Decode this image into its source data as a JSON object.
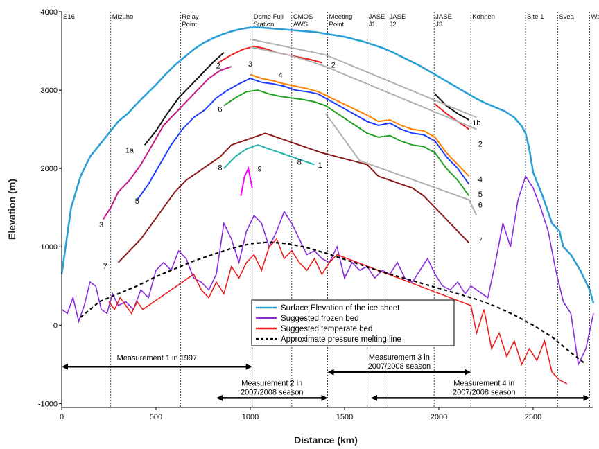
{
  "chart_data": {
    "type": "line",
    "xlabel": "Distance (km)",
    "ylabel": "Elevation (m)",
    "xlim": [
      0,
      2820
    ],
    "ylim": [
      -1050,
      4000
    ],
    "x_ticks": [
      0,
      500,
      1000,
      1500,
      2000,
      2500
    ],
    "y_ticks": [
      -1000,
      0,
      1000,
      2000,
      3000,
      4000
    ],
    "grid": false,
    "legend_position": "bottom-center",
    "colors": {
      "surface": "#2a9fd6",
      "frozen": "#8a2be2",
      "temperate": "#ee1c1c",
      "melting": "#000000",
      "layer_1": "#111111",
      "layer_2": "#ee1c1c",
      "layer_3": "#c71585",
      "layer_4": "#ff7f00",
      "layer_5": "#1e3cff",
      "layer_6": "#22a022",
      "layer_7": "#8b1a1a",
      "layer_8": "#20b2aa",
      "layer_9": "#ff00ff",
      "layer_gray": "#b0b0b0"
    },
    "stations": [
      {
        "km": 0,
        "label": [
          "S16"
        ]
      },
      {
        "km": 260,
        "label": [
          "Mizuho"
        ]
      },
      {
        "km": 630,
        "label": [
          "Relay",
          "Point"
        ]
      },
      {
        "km": 1010,
        "label": [
          "Dome Fuji",
          "Station"
        ]
      },
      {
        "km": 1220,
        "label": [
          "CMOS",
          "AWS"
        ]
      },
      {
        "km": 1410,
        "label": [
          "Meeting",
          "Point"
        ]
      },
      {
        "km": 1620,
        "label": [
          "JASE",
          "J1"
        ]
      },
      {
        "km": 1730,
        "label": [
          "JASE",
          "J2"
        ]
      },
      {
        "km": 1975,
        "label": [
          "JASE",
          "J3"
        ]
      },
      {
        "km": 2170,
        "label": [
          "Kohnen"
        ]
      },
      {
        "km": 2460,
        "label": [
          "Site 1"
        ]
      },
      {
        "km": 2630,
        "label": [
          "Svea"
        ]
      },
      {
        "km": 2800,
        "label": [
          "Wasa"
        ]
      }
    ],
    "surface": {
      "name": "Surface Elevation of the ice sheet",
      "x": [
        0,
        50,
        100,
        150,
        200,
        250,
        300,
        350,
        400,
        450,
        500,
        550,
        600,
        650,
        700,
        750,
        800,
        850,
        900,
        950,
        1000,
        1050,
        1100,
        1150,
        1200,
        1250,
        1300,
        1350,
        1400,
        1450,
        1500,
        1550,
        1600,
        1650,
        1700,
        1750,
        1800,
        1850,
        1900,
        1950,
        2000,
        2050,
        2100,
        2150,
        2200,
        2250,
        2300,
        2350,
        2400,
        2440,
        2460,
        2480,
        2500,
        2550,
        2600,
        2640,
        2660,
        2700,
        2750,
        2800,
        2820
      ],
      "y": [
        650,
        1500,
        1900,
        2150,
        2300,
        2450,
        2600,
        2700,
        2830,
        2950,
        3070,
        3200,
        3320,
        3420,
        3520,
        3600,
        3660,
        3710,
        3750,
        3780,
        3800,
        3800,
        3790,
        3780,
        3770,
        3760,
        3750,
        3740,
        3720,
        3700,
        3680,
        3650,
        3620,
        3580,
        3540,
        3490,
        3430,
        3370,
        3310,
        3240,
        3170,
        3100,
        3030,
        2960,
        2890,
        2830,
        2780,
        2730,
        2650,
        2540,
        2450,
        2250,
        1950,
        1650,
        1300,
        1200,
        1000,
        900,
        700,
        450,
        280
      ]
    },
    "frozen_bed": {
      "name": "Suggested frozen bed",
      "x": [
        0,
        30,
        60,
        90,
        120,
        150,
        180,
        210,
        240,
        270,
        300,
        340,
        380,
        420,
        460,
        500,
        540,
        580,
        620,
        660,
        700,
        740,
        780,
        820,
        860,
        900,
        940,
        980,
        1020,
        1060,
        1100,
        1140,
        1180,
        1220,
        1260,
        1300,
        1340,
        1380,
        1420,
        1460,
        1500,
        1540,
        1580,
        1620,
        1660,
        1700,
        1740,
        1780,
        1820,
        1860,
        1900,
        1940,
        1980,
        2020,
        2060,
        2100,
        2140,
        2170,
        2260,
        2300,
        2340,
        2380,
        2420,
        2460,
        2500,
        2540,
        2580,
        2620,
        2660,
        2700,
        2740,
        2780,
        2820
      ],
      "y": [
        200,
        150,
        350,
        50,
        250,
        550,
        500,
        200,
        150,
        400,
        250,
        300,
        200,
        450,
        350,
        700,
        800,
        700,
        950,
        850,
        600,
        550,
        450,
        650,
        1300,
        1100,
        800,
        1200,
        1400,
        1300,
        1000,
        1200,
        1450,
        1300,
        1100,
        900,
        950,
        850,
        800,
        1000,
        600,
        800,
        700,
        750,
        600,
        700,
        650,
        800,
        600,
        550,
        700,
        850,
        650,
        500,
        450,
        550,
        400,
        500,
        350,
        800,
        1300,
        1000,
        1600,
        1900,
        1750,
        1500,
        1200,
        700,
        300,
        150,
        -500,
        -300,
        150
      ]
    },
    "temperate_bed": {
      "name": "Suggested temperate bed",
      "x": [
        250,
        280,
        310,
        340,
        370,
        400,
        430,
        700,
        740,
        780,
        820,
        860,
        900,
        940,
        980,
        1020,
        1060,
        1100,
        1140,
        1180,
        1220,
        1260,
        1300,
        1340,
        1380,
        1420,
        1460,
        2170,
        2200,
        2240,
        2280,
        2320,
        2360,
        2400,
        2440,
        2480,
        2520,
        2560,
        2600,
        2640,
        2680
      ],
      "y": [
        300,
        200,
        350,
        250,
        150,
        300,
        200,
        650,
        450,
        350,
        550,
        400,
        750,
        600,
        800,
        900,
        700,
        1000,
        1100,
        850,
        950,
        800,
        700,
        850,
        650,
        800,
        900,
        250,
        -100,
        200,
        -300,
        -100,
        -400,
        -200,
        -500,
        -300,
        -450,
        -200,
        -600,
        -700,
        -750
      ]
    },
    "pressure_melting": {
      "name": "Approximate pressure melting line",
      "x": [
        100,
        200,
        300,
        400,
        500,
        600,
        700,
        800,
        900,
        1000,
        1100,
        1200,
        1300,
        1400,
        1500,
        1600,
        1700,
        1800,
        1900,
        2000,
        2100,
        2200,
        2300,
        2400,
        2500,
        2600,
        2700,
        2780
      ],
      "y": [
        100,
        300,
        400,
        500,
        620,
        720,
        820,
        900,
        980,
        1040,
        1060,
        1040,
        990,
        920,
        840,
        760,
        680,
        610,
        540,
        470,
        400,
        330,
        240,
        130,
        0,
        -150,
        -350,
        -500
      ]
    },
    "internal_layers": [
      {
        "label": "1a",
        "color": "#111111",
        "x": [
          440,
          500,
          560,
          620,
          680,
          740,
          800,
          860
        ],
        "y": [
          2300,
          2480,
          2700,
          2900,
          3050,
          3200,
          3350,
          3480
        ]
      },
      {
        "label": "1b",
        "color": "#111111",
        "x": [
          1980,
          2040,
          2100,
          2160
        ],
        "y": [
          2950,
          2800,
          2700,
          2620
        ]
      },
      {
        "label": "2",
        "color": "#ee1c1c",
        "x": [
          830,
          900,
          960,
          1020,
          1080,
          1140,
          1200,
          1260,
          1320,
          1380
        ],
        "y": [
          3350,
          3450,
          3520,
          3560,
          3530,
          3480,
          3450,
          3420,
          3390,
          3350
        ]
      },
      {
        "label": "2",
        "color": "#ee1c1c",
        "x": [
          1980,
          2040,
          2100,
          2160
        ],
        "y": [
          2820,
          2700,
          2600,
          2500
        ]
      },
      {
        "label": "3",
        "color": "#c71585",
        "x": [
          220,
          260,
          300,
          360,
          420,
          480,
          540,
          600,
          660,
          720,
          780,
          840,
          900
        ],
        "y": [
          1350,
          1500,
          1700,
          1850,
          2050,
          2300,
          2550,
          2700,
          2850,
          3000,
          3150,
          3250,
          3300
        ]
      },
      {
        "label": "4",
        "color": "#ff7f00",
        "x": [
          1000,
          1060,
          1120,
          1180,
          1240,
          1300,
          1360,
          1620,
          1680,
          1740,
          1800,
          1860,
          1920,
          1980,
          2040,
          2100,
          2160
        ],
        "y": [
          3200,
          3150,
          3120,
          3080,
          3050,
          3020,
          2980,
          2680,
          2600,
          2620,
          2550,
          2500,
          2480,
          2400,
          2200,
          2050,
          1900
        ]
      },
      {
        "label": "5",
        "color": "#1e3cff",
        "x": [
          400,
          460,
          520,
          580,
          640,
          700,
          760,
          820,
          880,
          940,
          1000,
          1060,
          1120,
          1180,
          1240,
          1300,
          1360,
          1620,
          1680,
          1740,
          1800,
          1860,
          1920,
          1980,
          2040,
          2100,
          2160
        ],
        "y": [
          1600,
          1800,
          2050,
          2300,
          2500,
          2650,
          2750,
          2900,
          3000,
          3080,
          3150,
          3100,
          3080,
          3050,
          3000,
          2980,
          2950,
          2600,
          2550,
          2580,
          2500,
          2450,
          2430,
          2350,
          2150,
          2000,
          1800
        ]
      },
      {
        "label": "6",
        "color": "#22a022",
        "x": [
          860,
          920,
          980,
          1040,
          1100,
          1160,
          1220,
          1280,
          1340,
          1400,
          1620,
          1680,
          1740,
          1800,
          1860,
          1920,
          1980,
          2040,
          2100,
          2160
        ],
        "y": [
          2800,
          2900,
          2980,
          3000,
          2950,
          2920,
          2900,
          2880,
          2850,
          2800,
          2450,
          2400,
          2420,
          2350,
          2300,
          2280,
          2200,
          2000,
          1850,
          1650
        ]
      },
      {
        "label": "7",
        "color": "#8b1a1a",
        "x": [
          300,
          360,
          420,
          480,
          540,
          600,
          660,
          720,
          780,
          840,
          900,
          960,
          1020,
          1080,
          1140,
          1200,
          1260,
          1320,
          1380,
          1620,
          1680,
          1740,
          1800,
          1860,
          1920,
          1980,
          2040,
          2100,
          2160
        ],
        "y": [
          800,
          950,
          1100,
          1300,
          1500,
          1700,
          1850,
          1950,
          2050,
          2150,
          2300,
          2350,
          2400,
          2450,
          2400,
          2350,
          2300,
          2250,
          2200,
          2050,
          1900,
          1850,
          1800,
          1750,
          1650,
          1500,
          1350,
          1200,
          1050
        ]
      },
      {
        "label": "8",
        "color": "#20b2aa",
        "x": [
          860,
          920,
          980,
          1040,
          1100,
          1160,
          1220,
          1280,
          1340
        ],
        "y": [
          2000,
          2150,
          2250,
          2300,
          2250,
          2200,
          2150,
          2100,
          2050
        ]
      },
      {
        "label": "9",
        "color": "#ff00ff",
        "x": [
          950,
          970,
          990,
          1010
        ],
        "y": [
          1650,
          1900,
          2000,
          1750
        ]
      },
      {
        "label": "",
        "color": "#b0b0b0",
        "x": [
          1000,
          1100,
          1200,
          1300,
          1400,
          1500,
          1600,
          1700,
          1800,
          1900,
          2000,
          2100,
          2200
        ],
        "y": [
          3650,
          3600,
          3550,
          3500,
          3450,
          3350,
          3250,
          3150,
          3050,
          2950,
          2850,
          2750,
          2650
        ]
      },
      {
        "label": "",
        "color": "#b0b0b0",
        "x": [
          1000,
          1100,
          1200,
          1300,
          1400,
          1500,
          1600,
          1700,
          1800,
          1900,
          2000,
          2100,
          2200
        ],
        "y": [
          3550,
          3500,
          3450,
          3380,
          3300,
          3200,
          3100,
          3000,
          2900,
          2800,
          2700,
          2600,
          2500
        ]
      },
      {
        "label": "",
        "color": "#b0b0b0",
        "x": [
          1400,
          1460,
          1520,
          1580,
          2160,
          2200
        ],
        "y": [
          2700,
          2500,
          2300,
          2100,
          1600,
          1400
        ]
      }
    ],
    "measurements": [
      {
        "label": [
          "Measurement 1 in 1997"
        ],
        "from": 0,
        "to": 1010,
        "y": -530,
        "text_x": 505,
        "text_y": -450
      },
      {
        "label": [
          "Measurement 2 in",
          "2007/2008 season"
        ],
        "from": 820,
        "to": 1410,
        "y": -930,
        "text_x": 1115,
        "text_y": -770
      },
      {
        "label": [
          "Measurement 3 in",
          "2007/2008 season"
        ],
        "from": 1410,
        "to": 2170,
        "y": -600,
        "text_x": 1790,
        "text_y": -440
      },
      {
        "label": [
          "Measurement 4 in",
          "2007/2008 season"
        ],
        "from": 1640,
        "to": 2800,
        "y": -930,
        "text_x": 2240,
        "text_y": -770
      }
    ],
    "legend": [
      {
        "label": "Surface Elevation of the ice sheet",
        "color": "#2a9fd6",
        "style": "solid"
      },
      {
        "label": "Suggested frozen bed",
        "color": "#8a2be2",
        "style": "solid"
      },
      {
        "label": "Suggested temperate bed",
        "color": "#ee1c1c",
        "style": "solid"
      },
      {
        "label": "Approximate pressure melting line",
        "color": "#000000",
        "style": "dashed"
      }
    ],
    "layer_labels": [
      {
        "text": "1a",
        "x": 360,
        "y": 2200,
        "color": "#111111"
      },
      {
        "text": "1b",
        "x": 2200,
        "y": 2550,
        "color": "#111111"
      },
      {
        "text": "2",
        "x": 830,
        "y": 3280,
        "color": "#ee1c1c"
      },
      {
        "text": "2",
        "x": 1440,
        "y": 3290,
        "color": "#ee1c1c"
      },
      {
        "text": "2",
        "x": 2220,
        "y": 2280,
        "color": "#ee1c1c"
      },
      {
        "text": "3",
        "x": 210,
        "y": 1250,
        "color": "#c71585"
      },
      {
        "text": "3",
        "x": 1000,
        "y": 3300,
        "color": "#c71585"
      },
      {
        "text": "4",
        "x": 1160,
        "y": 3160,
        "color": "#ff7f00"
      },
      {
        "text": "4",
        "x": 2220,
        "y": 1830,
        "color": "#ff7f00"
      },
      {
        "text": "5",
        "x": 400,
        "y": 1550,
        "color": "#1e3cff"
      },
      {
        "text": "5",
        "x": 2220,
        "y": 1640,
        "color": "#1e3cff"
      },
      {
        "text": "6",
        "x": 840,
        "y": 2720,
        "color": "#22a022"
      },
      {
        "text": "6",
        "x": 2220,
        "y": 1500,
        "color": "#22a022"
      },
      {
        "text": "7",
        "x": 230,
        "y": 720,
        "color": "#8b1a1a"
      },
      {
        "text": "7",
        "x": 2220,
        "y": 1050,
        "color": "#8b1a1a"
      },
      {
        "text": "8",
        "x": 840,
        "y": 1980,
        "color": "#20b2aa"
      },
      {
        "text": "9",
        "x": 1050,
        "y": 1960,
        "color": "#ff00ff"
      },
      {
        "text": "8",
        "x": 1260,
        "y": 2050,
        "color": "#20b2aa"
      },
      {
        "text": "1",
        "x": 1370,
        "y": 2010,
        "color": "#20b2aa"
      }
    ]
  }
}
